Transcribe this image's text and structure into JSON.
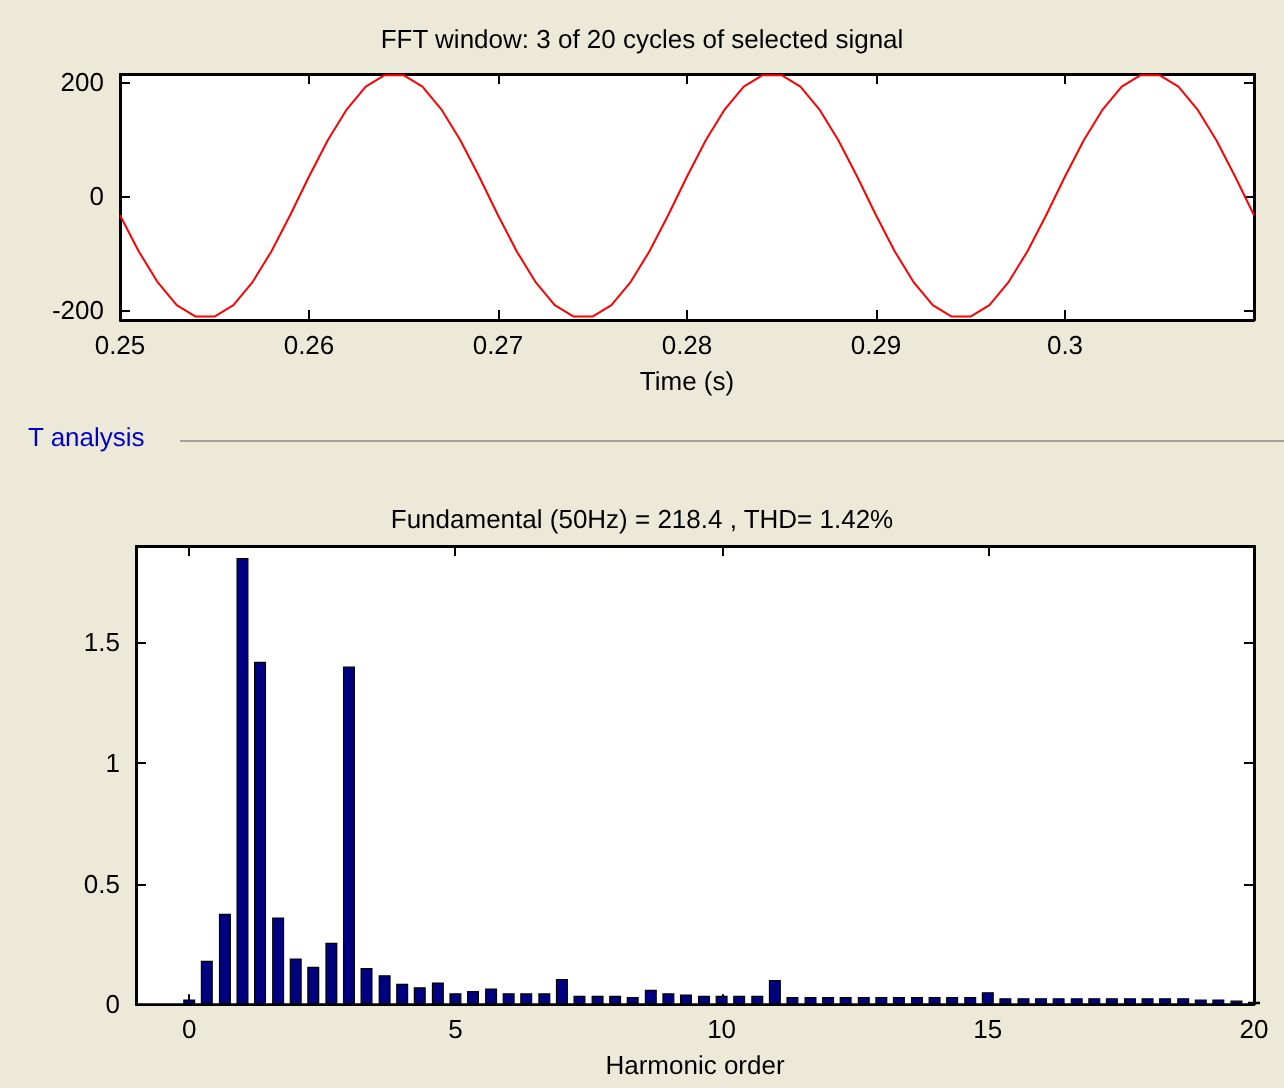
{
  "chart_data": [
    {
      "type": "line",
      "title": "FFT window: 3 of 20 cycles of selected signal",
      "xlabel": "Time (s)",
      "x": [
        0.25,
        0.251,
        0.252,
        0.253,
        0.254,
        0.255,
        0.256,
        0.257,
        0.258,
        0.259,
        0.26,
        0.261,
        0.262,
        0.263,
        0.264,
        0.265,
        0.266,
        0.267,
        0.268,
        0.269,
        0.27,
        0.271,
        0.272,
        0.273,
        0.274,
        0.275,
        0.276,
        0.277,
        0.278,
        0.279,
        0.28,
        0.281,
        0.282,
        0.283,
        0.284,
        0.285,
        0.286,
        0.287,
        0.288,
        0.289,
        0.29,
        0.291,
        0.292,
        0.293,
        0.294,
        0.295,
        0.296,
        0.297,
        0.298,
        0.299,
        0.3,
        0.301,
        0.302,
        0.303,
        0.304,
        0.305,
        0.306,
        0.307,
        0.308,
        0.309,
        0.31
      ],
      "series": [
        {
          "color": "#ff0000",
          "values": [
            -34,
            -98,
            -152,
            -192,
            -212,
            -212,
            -192,
            -152,
            -98,
            -34,
            34,
            98,
            152,
            192,
            212,
            212,
            192,
            152,
            98,
            34,
            -34,
            -98,
            -152,
            -192,
            -212,
            -212,
            -192,
            -152,
            -98,
            -34,
            34,
            98,
            152,
            192,
            212,
            212,
            192,
            152,
            98,
            34,
            -34,
            -98,
            -152,
            -192,
            -212,
            -212,
            -192,
            -152,
            -98,
            -34,
            34,
            98,
            152,
            192,
            212,
            212,
            192,
            152,
            98,
            34,
            -34
          ]
        }
      ],
      "xlim": [
        0.25,
        0.31
      ],
      "xticks": [
        0.25,
        0.26,
        0.27,
        0.28,
        0.29,
        0.3
      ],
      "ylim": [
        -218,
        214
      ],
      "yticks": [
        -200,
        0,
        200
      ]
    },
    {
      "type": "bar",
      "title": "Fundamental (50Hz) = 218.4 , THD= 1.42%",
      "xlabel": "Harmonic order",
      "annotations": [
        "T analysis"
      ],
      "x": [
        0,
        0.33,
        0.67,
        1,
        1.33,
        1.67,
        2,
        2.33,
        2.67,
        3,
        3.33,
        3.67,
        4,
        4.33,
        4.67,
        5,
        5.33,
        5.67,
        6,
        6.33,
        6.67,
        7,
        7.33,
        7.67,
        8,
        8.33,
        8.67,
        9,
        9.33,
        9.67,
        10,
        10.33,
        10.67,
        11,
        11.33,
        11.67,
        12,
        12.33,
        12.67,
        13,
        13.33,
        13.67,
        14,
        14.33,
        14.67,
        15,
        15.33,
        15.67,
        16,
        16.33,
        16.67,
        17,
        17.33,
        17.67,
        18,
        18.33,
        18.67,
        19,
        19.33,
        19.67,
        20
      ],
      "series": [
        {
          "color": "#000080",
          "values": [
            0.02,
            0.18,
            0.375,
            1.85,
            1.42,
            0.36,
            0.19,
            0.155,
            0.255,
            1.4,
            0.15,
            0.12,
            0.085,
            0.07,
            0.09,
            0.045,
            0.055,
            0.065,
            0.045,
            0.045,
            0.045,
            0.105,
            0.035,
            0.035,
            0.035,
            0.03,
            0.06,
            0.045,
            0.04,
            0.035,
            0.035,
            0.035,
            0.035,
            0.1,
            0.03,
            0.03,
            0.03,
            0.03,
            0.03,
            0.03,
            0.03,
            0.03,
            0.03,
            0.03,
            0.03,
            0.05,
            0.025,
            0.025,
            0.025,
            0.025,
            0.025,
            0.025,
            0.025,
            0.025,
            0.025,
            0.025,
            0.025,
            0.02,
            0.02,
            0.015,
            0.01
          ]
        }
      ],
      "xlim": [
        -1,
        20
      ],
      "xticks": [
        0,
        5,
        10,
        15,
        20
      ],
      "ylim": [
        0,
        1.9
      ],
      "yticks": [
        0,
        0.5,
        1,
        1.5
      ]
    }
  ]
}
